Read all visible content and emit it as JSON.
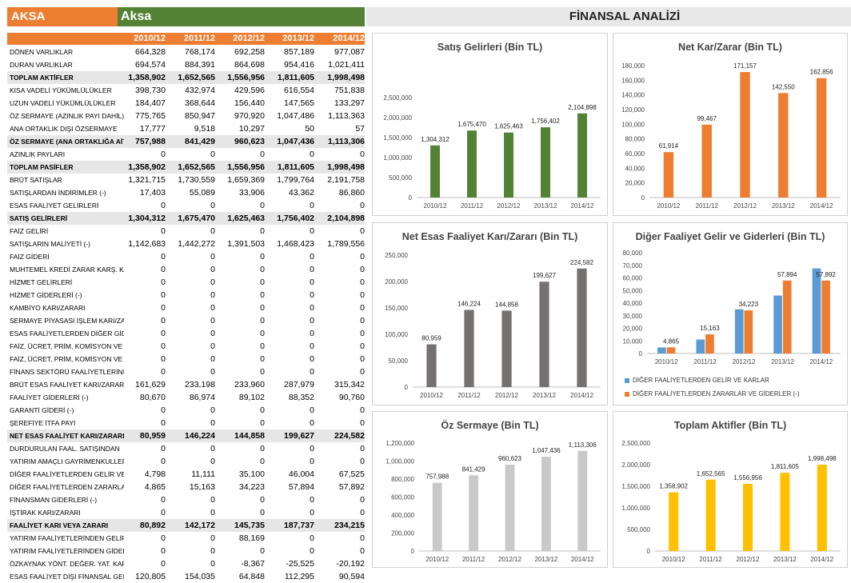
{
  "header": {
    "ticker": "AKSA",
    "company": "Aksa",
    "title": "FİNANSAL ANALİZİ"
  },
  "years": [
    "2010/12",
    "2011/12",
    "2012/12",
    "2013/12",
    "2014/12"
  ],
  "rows": [
    {
      "label": "DÖNEN VARLIKLAR",
      "values": [
        "664,328",
        "768,174",
        "692,258",
        "857,189",
        "977,087"
      ],
      "bold": false
    },
    {
      "label": "DURAN VARLIKLAR",
      "values": [
        "694,574",
        "884,391",
        "864,698",
        "954,416",
        "1,021,411"
      ],
      "bold": false
    },
    {
      "label": "TOPLAM AKTİFLER",
      "values": [
        "1,358,902",
        "1,652,565",
        "1,556,956",
        "1,811,605",
        "1,998,498"
      ],
      "bold": true
    },
    {
      "label": "KISA VADELİ YÜKÜMLÜLÜKLER",
      "values": [
        "398,730",
        "432,974",
        "429,596",
        "616,554",
        "751,838"
      ],
      "bold": false
    },
    {
      "label": "UZUN VADELİ YÜKÜMLÜLÜKLER",
      "values": [
        "184,407",
        "368,644",
        "156,440",
        "147,565",
        "133,297"
      ],
      "bold": false
    },
    {
      "label": "ÖZ SERMAYE (AZINLIK PAYI DAHİL)",
      "values": [
        "775,765",
        "850,947",
        "970,920",
        "1,047,486",
        "1,113,363"
      ],
      "bold": false
    },
    {
      "label": "ANA ORTAKLIK DIŞI ÖZSERMAYE",
      "values": [
        "17,777",
        "9,518",
        "10,297",
        "50",
        "57"
      ],
      "bold": false
    },
    {
      "label": "ÖZ SERMAYE (ANA ORTAKLIĞA AİT)",
      "values": [
        "757,988",
        "841,429",
        "960,623",
        "1,047,436",
        "1,113,306"
      ],
      "bold": true
    },
    {
      "label": "AZINLIK PAYLARI",
      "values": [
        "0",
        "0",
        "0",
        "0",
        "0"
      ],
      "bold": false
    },
    {
      "label": "TOPLAM PASİFLER",
      "values": [
        "1,358,902",
        "1,652,565",
        "1,556,956",
        "1,811,605",
        "1,998,498"
      ],
      "bold": true
    },
    {
      "label": "BRÜT SATIŞLAR",
      "values": [
        "1,321,715",
        "1,730,559",
        "1,659,369",
        "1,799,764",
        "2,191,758"
      ],
      "bold": false
    },
    {
      "label": "SATIŞLARDAN İNDİRİMLER (-)",
      "values": [
        "17,403",
        "55,089",
        "33,906",
        "43,362",
        "86,860"
      ],
      "bold": false
    },
    {
      "label": "ESAS FAALİYET GELİRLERİ",
      "values": [
        "0",
        "0",
        "0",
        "0",
        "0"
      ],
      "bold": false
    },
    {
      "label": "SATIŞ GELİRLERİ",
      "values": [
        "1,304,312",
        "1,675,470",
        "1,625,463",
        "1,756,402",
        "2,104,898"
      ],
      "bold": true
    },
    {
      "label": "FAİZ GELİRİ",
      "values": [
        "0",
        "0",
        "0",
        "0",
        "0"
      ],
      "bold": false
    },
    {
      "label": "SATIŞLARIN MALİYETİ (-)",
      "values": [
        "1,142,683",
        "1,442,272",
        "1,391,503",
        "1,468,423",
        "1,789,556"
      ],
      "bold": false
    },
    {
      "label": "FAİZ GİDERİ",
      "values": [
        "0",
        "0",
        "0",
        "0",
        "0"
      ],
      "bold": false
    },
    {
      "label": "MUHTEMEL KREDİ ZARAR KARŞ. KARŞILIĞI",
      "values": [
        "0",
        "0",
        "0",
        "0",
        "0"
      ],
      "bold": false
    },
    {
      "label": "HİZMET GELİRLERİ",
      "values": [
        "0",
        "0",
        "0",
        "0",
        "0"
      ],
      "bold": false
    },
    {
      "label": "HİZMET GİDERLERİ (-)",
      "values": [
        "0",
        "0",
        "0",
        "0",
        "0"
      ],
      "bold": false
    },
    {
      "label": "KAMBİYO KARI/ZARARI",
      "values": [
        "0",
        "0",
        "0",
        "0",
        "0"
      ],
      "bold": false
    },
    {
      "label": "SERMAYE PİYASASI İŞLEM KARI/ZARARI",
      "values": [
        "0",
        "0",
        "0",
        "0",
        "0"
      ],
      "bold": false
    },
    {
      "label": "ESAS FAALİYETLERDEN DİĞER GİDERLER",
      "values": [
        "0",
        "0",
        "0",
        "0",
        "0"
      ],
      "bold": false
    },
    {
      "label": "FAİZ, ÜCRET, PRİM, KOMİSYON VE DİĞER GELİRLER",
      "values": [
        "0",
        "0",
        "0",
        "0",
        "0"
      ],
      "bold": false
    },
    {
      "label": "FAİZ, ÜCRET, PRİM, KOMİSYON VE DİĞER GİDERLER",
      "values": [
        "0",
        "0",
        "0",
        "0",
        "0"
      ],
      "bold": false
    },
    {
      "label": "FİNANS SEKTÖRÜ FAALİYETLERİNDEN",
      "values": [
        "0",
        "0",
        "0",
        "0",
        "0"
      ],
      "bold": false
    },
    {
      "label": "BRÜT ESAS FAALİYET KARI/ZARARI",
      "values": [
        "161,629",
        "233,198",
        "233,960",
        "287,979",
        "315,342"
      ],
      "bold": false
    },
    {
      "label": "FAALİYET GİDERLERİ (-)",
      "values": [
        "80,670",
        "86,974",
        "89,102",
        "88,352",
        "90,760"
      ],
      "bold": false
    },
    {
      "label": "GARANTİ GİDERİ (-)",
      "values": [
        "0",
        "0",
        "0",
        "0",
        "0"
      ],
      "bold": false
    },
    {
      "label": "ŞEREFİYE İTFA PAYI",
      "values": [
        "0",
        "0",
        "0",
        "0",
        "0"
      ],
      "bold": false
    },
    {
      "label": "NET ESAS FAALİYET KARI/ZARARI",
      "values": [
        "80,959",
        "146,224",
        "144,858",
        "199,627",
        "224,582"
      ],
      "bold": true
    },
    {
      "label": "DURDURULAN FAAL. SATIŞINDAN",
      "values": [
        "0",
        "0",
        "0",
        "0",
        "0"
      ],
      "bold": false
    },
    {
      "label": "YATIRIM AMAÇLI GAYRİMENKULLER",
      "values": [
        "0",
        "0",
        "0",
        "0",
        "0"
      ],
      "bold": false
    },
    {
      "label": "DİĞER FAALİYETLERDEN GELİR VE KARLAR",
      "values": [
        "4,798",
        "11,111",
        "35,100",
        "46,004",
        "67,525"
      ],
      "bold": false
    },
    {
      "label": "DİĞER FAALİYETLERDEN ZARARLAR VE GİDERLER",
      "values": [
        "4,865",
        "15,163",
        "34,223",
        "57,894",
        "57,892"
      ],
      "bold": false
    },
    {
      "label": "FİNANSMAN GİDERLERİ (-)",
      "values": [
        "0",
        "0",
        "0",
        "0",
        "0"
      ],
      "bold": false
    },
    {
      "label": "İŞTİRAK KARI/ZARARI",
      "values": [
        "0",
        "0",
        "0",
        "0",
        "0"
      ],
      "bold": false
    },
    {
      "label": "FAALİYET KARI VEYA ZARARI",
      "values": [
        "80,892",
        "142,172",
        "145,735",
        "187,737",
        "234,215"
      ],
      "bold": true
    },
    {
      "label": "YATIRIM FAALİYETLERİNDEN GELİRLER",
      "values": [
        "0",
        "0",
        "88,169",
        "0",
        "0"
      ],
      "bold": false
    },
    {
      "label": "YATIRIM FAALİYETLERİNDEN GİDERLER",
      "values": [
        "0",
        "0",
        "0",
        "0",
        "0"
      ],
      "bold": false
    },
    {
      "label": "ÖZKAYNAK YÖNT. DEĞER. YAT. KAR/ZARAR",
      "values": [
        "0",
        "0",
        "-8,367",
        "-25,525",
        "-20,192"
      ],
      "bold": false
    },
    {
      "label": "ESAS FAALİYET DIŞI FİNANSAL GELİRLER",
      "values": [
        "120,805",
        "154,035",
        "64,848",
        "112,295",
        "90,594"
      ],
      "bold": false
    }
  ],
  "chart_data": [
    {
      "type": "bar",
      "title": "Satış Gelirleri (Bin TL)",
      "categories": [
        "2010/12",
        "2011/12",
        "2012/12",
        "2013/12",
        "2014/12"
      ],
      "series": [
        {
          "values": [
            1304312,
            1675470,
            1625463,
            1756402,
            2104898
          ]
        }
      ],
      "value_labels": [
        "1,304,312",
        "1,675,470",
        "1,625,463",
        "1,756,402",
        "2,104,898"
      ],
      "ylim": [
        0,
        2500000
      ],
      "yticks": [
        "0",
        "500,000",
        "1,000,000",
        "1,500,000",
        "2,000,000",
        "2,500,000"
      ],
      "color": "#548235"
    },
    {
      "type": "bar",
      "title": "Net Kar/Zarar (Bin TL)",
      "categories": [
        "2010/12",
        "2011/12",
        "2012/12",
        "2013/12",
        "2014/12"
      ],
      "series": [
        {
          "values": [
            61914,
            99467,
            171157,
            142550,
            162856
          ]
        }
      ],
      "value_labels": [
        "61,914",
        "99,467",
        "171,157",
        "142,550",
        "162,856"
      ],
      "ylim": [
        0,
        180000
      ],
      "yticks": [
        "0",
        "20,000",
        "40,000",
        "60,000",
        "80,000",
        "100,000",
        "120,000",
        "140,000",
        "160,000",
        "180,000"
      ],
      "color": "#ED7D31"
    },
    {
      "type": "bar",
      "title": "Net Esas Faaliyet Karı/Zararı (Bin TL)",
      "categories": [
        "2010/12",
        "2011/12",
        "2012/12",
        "2013/12",
        "2014/12"
      ],
      "series": [
        {
          "values": [
            80959,
            146224,
            144858,
            199627,
            224582
          ]
        }
      ],
      "value_labels": [
        "80,959",
        "146,224",
        "144,858",
        "199,627",
        "224,582"
      ],
      "ylim": [
        0,
        250000
      ],
      "yticks": [
        "0",
        "50,000",
        "100,000",
        "150,000",
        "200,000",
        "250,000"
      ],
      "color": "#767171"
    },
    {
      "type": "bar",
      "title": "Diğer Faaliyet Gelir ve Giderleri (Bin TL)",
      "categories": [
        "2010/12",
        "2011/12",
        "2012/12",
        "2013/12",
        "2014/12"
      ],
      "series": [
        {
          "name": "DİĞER FAALİYETLERDEN GELİR VE KARLAR",
          "values": [
            4798,
            11111,
            35100,
            46004,
            67525
          ],
          "color": "#5B9BD5"
        },
        {
          "name": "DİĞER FAALİYETLERDEN ZARARLAR VE GİDERLER (-)",
          "values": [
            4865,
            15163,
            34223,
            57894,
            57892
          ],
          "color": "#ED7D31"
        }
      ],
      "value_labels": [
        "4,865",
        "15,163",
        "34,223",
        "57,894",
        "57,892"
      ],
      "ylim": [
        0,
        80000
      ],
      "yticks": [
        "0",
        "10,000",
        "20,000",
        "30,000",
        "40,000",
        "50,000",
        "60,000",
        "70,000",
        "80,000"
      ],
      "legend": "bottom"
    },
    {
      "type": "bar",
      "title": "Öz Sermaye (Bin TL)",
      "categories": [
        "2010/12",
        "2011/12",
        "2012/12",
        "2013/12",
        "2014/12"
      ],
      "series": [
        {
          "values": [
            757988,
            841429,
            960623,
            1047436,
            1113306
          ]
        }
      ],
      "value_labels": [
        "757,988",
        "841,429",
        "960,623",
        "1,047,436",
        "1,113,306"
      ],
      "ylim": [
        0,
        1200000
      ],
      "yticks": [
        "0",
        "200,000",
        "400,000",
        "600,000",
        "800,000",
        "1,000,000",
        "1,200,000"
      ],
      "color": "#C9C9C9"
    },
    {
      "type": "bar",
      "title": "Toplam Aktifler (Bin TL)",
      "categories": [
        "2010/12",
        "2011/12",
        "2012/12",
        "2013/12",
        "2014/12"
      ],
      "series": [
        {
          "values": [
            1358902,
            1652565,
            1556956,
            1811605,
            1998498
          ]
        }
      ],
      "value_labels": [
        "1,358,902",
        "1,652,565",
        "1,556,956",
        "1,811,605",
        "1,998,498"
      ],
      "ylim": [
        0,
        2500000
      ],
      "yticks": [
        "0",
        "500,000",
        "1,000,000",
        "1,500,000",
        "2,000,000",
        "2,500,000"
      ],
      "color": "#FFC000"
    }
  ]
}
